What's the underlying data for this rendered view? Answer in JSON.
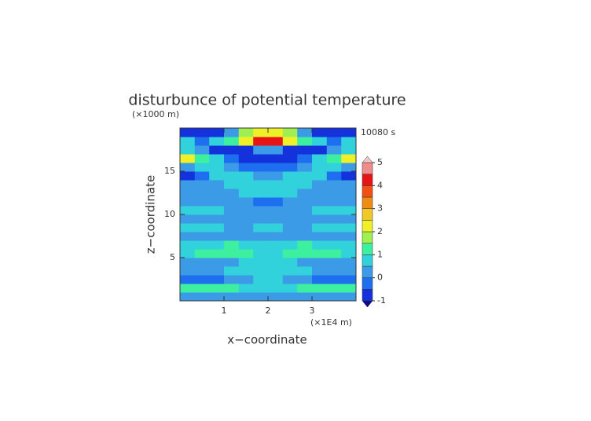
{
  "chart_data": {
    "type": "heatmap",
    "title": "disturbunce of potential temperature",
    "x_label": "x−coordinate",
    "y_label": "z−coordinate",
    "x_unit_label": "(×1E4 m)",
    "y_unit_label": "(×1000 m)",
    "annotation": "10080 s",
    "xlim": [
      0,
      4
    ],
    "ylim": [
      0,
      20
    ],
    "xticks": [
      1,
      2,
      3
    ],
    "yticks": [
      5,
      10,
      15
    ],
    "x": [
      0.17,
      0.5,
      0.83,
      1.17,
      1.5,
      1.83,
      2.17,
      2.5,
      2.83,
      3.17,
      3.5,
      3.83
    ],
    "y": [
      0.5,
      1.5,
      2.5,
      3.5,
      4.5,
      5.5,
      6.5,
      7.5,
      8.5,
      9.5,
      10.5,
      11.5,
      12.5,
      13.5,
      14.5,
      15.5,
      16.5,
      17.5,
      18.5,
      19.5
    ],
    "z": [
      [
        0.2,
        0.2,
        0.2,
        0.2,
        0.3,
        0.3,
        0.3,
        0.3,
        0.2,
        0.2,
        0.2,
        0.2
      ],
      [
        1.1,
        1.1,
        1.0,
        1.0,
        0.9,
        0.9,
        0.9,
        0.9,
        1.0,
        1.0,
        1.1,
        1.1
      ],
      [
        -0.2,
        -0.2,
        -0.1,
        0.2,
        0.3,
        0.6,
        0.6,
        0.3,
        0.2,
        -0.1,
        -0.2,
        -0.2
      ],
      [
        0.2,
        0.3,
        0.4,
        0.7,
        0.8,
        0.7,
        0.7,
        0.8,
        0.7,
        0.4,
        0.3,
        0.2
      ],
      [
        0.3,
        0.3,
        0.3,
        0.4,
        0.6,
        0.7,
        0.7,
        0.6,
        0.4,
        0.3,
        0.3,
        0.3
      ],
      [
        0.9,
        1.0,
        1.0,
        1.1,
        1.1,
        0.8,
        0.8,
        1.1,
        1.1,
        1.0,
        1.0,
        0.9
      ],
      [
        0.7,
        0.8,
        0.9,
        1.0,
        0.9,
        0.6,
        0.6,
        0.9,
        1.0,
        0.9,
        0.8,
        0.7
      ],
      [
        0.3,
        0.3,
        0.3,
        0.3,
        0.4,
        0.4,
        0.4,
        0.4,
        0.3,
        0.3,
        0.3,
        0.3
      ],
      [
        0.6,
        0.6,
        0.5,
        0.4,
        0.4,
        0.6,
        0.6,
        0.4,
        0.4,
        0.5,
        0.6,
        0.6
      ],
      [
        0.3,
        0.3,
        0.3,
        0.3,
        0.3,
        0.4,
        0.4,
        0.3,
        0.3,
        0.3,
        0.3,
        0.3
      ],
      [
        0.6,
        0.6,
        0.5,
        0.3,
        0.3,
        0.2,
        0.2,
        0.3,
        0.3,
        0.5,
        0.6,
        0.6
      ],
      [
        0.2,
        0.2,
        0.2,
        0.2,
        0.3,
        -0.3,
        -0.3,
        0.3,
        0.2,
        0.2,
        0.2,
        0.2
      ],
      [
        0.2,
        0.2,
        0.2,
        0.3,
        0.6,
        0.8,
        0.8,
        0.6,
        0.3,
        0.2,
        0.2,
        0.2
      ],
      [
        0.1,
        0.2,
        0.3,
        0.5,
        0.8,
        0.8,
        0.8,
        0.8,
        0.5,
        0.3,
        0.2,
        0.1
      ],
      [
        -0.6,
        -0.3,
        0.6,
        0.8,
        0.6,
        0.4,
        0.4,
        0.6,
        0.8,
        0.6,
        -0.3,
        -0.6
      ],
      [
        0.3,
        0.8,
        0.8,
        0.3,
        -0.2,
        -0.5,
        -0.5,
        -0.2,
        0.3,
        0.8,
        0.8,
        0.3
      ],
      [
        2.1,
        1.2,
        0.6,
        -0.4,
        -0.7,
        -0.7,
        -0.7,
        -0.7,
        -0.4,
        0.6,
        1.2,
        2.1
      ],
      [
        0.7,
        0.4,
        -0.6,
        -0.8,
        -0.8,
        0.3,
        0.3,
        -0.8,
        -0.8,
        -0.6,
        0.4,
        0.7
      ],
      [
        0.8,
        -0.4,
        0.6,
        1.2,
        2.2,
        4.3,
        4.3,
        2.2,
        1.2,
        0.6,
        -0.4,
        0.8
      ],
      [
        -0.8,
        -0.8,
        -0.8,
        0.4,
        1.5,
        2.2,
        2.2,
        1.5,
        0.4,
        -0.8,
        -0.8,
        -0.8
      ]
    ],
    "levels": [
      -1,
      -0.5,
      0,
      0.5,
      1,
      1.5,
      2,
      2.5,
      3,
      3.5,
      4,
      4.5,
      5
    ],
    "colors": [
      "#0a0a96",
      "#1432dc",
      "#1e6ef0",
      "#3c9be6",
      "#32d2dc",
      "#3cf0a0",
      "#a0f050",
      "#f0f028",
      "#f0c828",
      "#f08c14",
      "#f05014",
      "#e61414",
      "#f08c8c",
      "#f0c8c8"
    ],
    "colorbar_ticks": [
      -1,
      0,
      1,
      2,
      3,
      4,
      5
    ]
  }
}
